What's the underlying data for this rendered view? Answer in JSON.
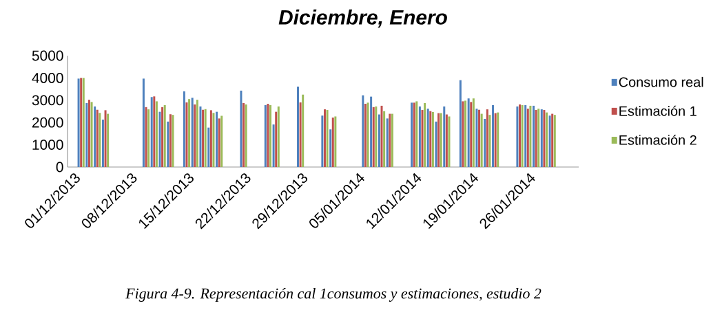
{
  "chart_data": {
    "type": "bar",
    "title": "Diciembre, Enero",
    "x": [
      "2013-12-02",
      "2013-12-03",
      "2013-12-04",
      "2013-12-05",
      "2013-12-10",
      "2013-12-11",
      "2013-12-12",
      "2013-12-13",
      "2013-12-15",
      "2013-12-16",
      "2013-12-17",
      "2013-12-18",
      "2013-12-19",
      "2013-12-22",
      "2013-12-25",
      "2013-12-26",
      "2013-12-29",
      "2014-01-01",
      "2014-01-02",
      "2014-01-06",
      "2014-01-07",
      "2014-01-08",
      "2014-01-09",
      "2014-01-12",
      "2014-01-13",
      "2014-01-14",
      "2014-01-15",
      "2014-01-16",
      "2014-01-18",
      "2014-01-19",
      "2014-01-20",
      "2014-01-21",
      "2014-01-22",
      "2014-01-25",
      "2014-01-26",
      "2014-01-27",
      "2014-01-28",
      "2014-01-29"
    ],
    "series": [
      {
        "name": "Consumo real",
        "color": "#4f81bd",
        "values": [
          3970,
          2870,
          2720,
          2130,
          3970,
          3140,
          2480,
          2040,
          3400,
          3110,
          2720,
          1770,
          2480,
          3430,
          2780,
          1910,
          3610,
          2310,
          1690,
          3220,
          3160,
          2360,
          2180,
          2890,
          2720,
          2620,
          2040,
          2720,
          3900,
          3080,
          2620,
          2160,
          2780,
          2720,
          2780,
          2750,
          2590,
          2310
        ]
      },
      {
        "name": "Estimación 1",
        "color": "#c0504d",
        "values": [
          4000,
          3020,
          2570,
          2550,
          2690,
          3170,
          2690,
          2370,
          2900,
          2810,
          2570,
          2550,
          2180,
          2870,
          2840,
          2480,
          2900,
          2590,
          2220,
          2840,
          2690,
          2750,
          2390,
          2890,
          2560,
          2510,
          2420,
          2360,
          2950,
          2920,
          2570,
          2590,
          2420,
          2810,
          2620,
          2560,
          2560,
          2390
        ]
      },
      {
        "name": "Estimación 2",
        "color": "#9bbb59",
        "values": [
          4000,
          2920,
          2430,
          2390,
          2590,
          2950,
          2780,
          2340,
          3050,
          3020,
          2600,
          2430,
          2300,
          2810,
          2780,
          2720,
          3250,
          2560,
          2270,
          2890,
          2720,
          2510,
          2390,
          2950,
          2870,
          2470,
          2420,
          2270,
          2980,
          3080,
          2390,
          2340,
          2450,
          2780,
          2750,
          2620,
          2450,
          2340
        ]
      }
    ],
    "xlim": [
      "2013-11-30T08:00",
      "2014-02-01T06:00"
    ],
    "xticks": [
      {
        "value": "2013-12-01",
        "label": "01/12/2013"
      },
      {
        "value": "2013-12-08",
        "label": "08/12/2013"
      },
      {
        "value": "2013-12-15",
        "label": "15/12/2013"
      },
      {
        "value": "2013-12-22",
        "label": "22/12/2013"
      },
      {
        "value": "2013-12-29",
        "label": "29/12/2013"
      },
      {
        "value": "2014-01-05",
        "label": "05/01/2014"
      },
      {
        "value": "2014-01-12",
        "label": "12/01/2014"
      },
      {
        "value": "2014-01-19",
        "label": "19/01/2014"
      },
      {
        "value": "2014-01-26",
        "label": "26/01/2014"
      }
    ],
    "ylim": [
      0,
      5000
    ],
    "yticks": [
      0,
      1000,
      2000,
      3000,
      4000,
      5000
    ],
    "legend": "right",
    "annotations": [
      "Figura 4-9. Representación cal 1consumos y estimaciones, estudio 2"
    ]
  }
}
